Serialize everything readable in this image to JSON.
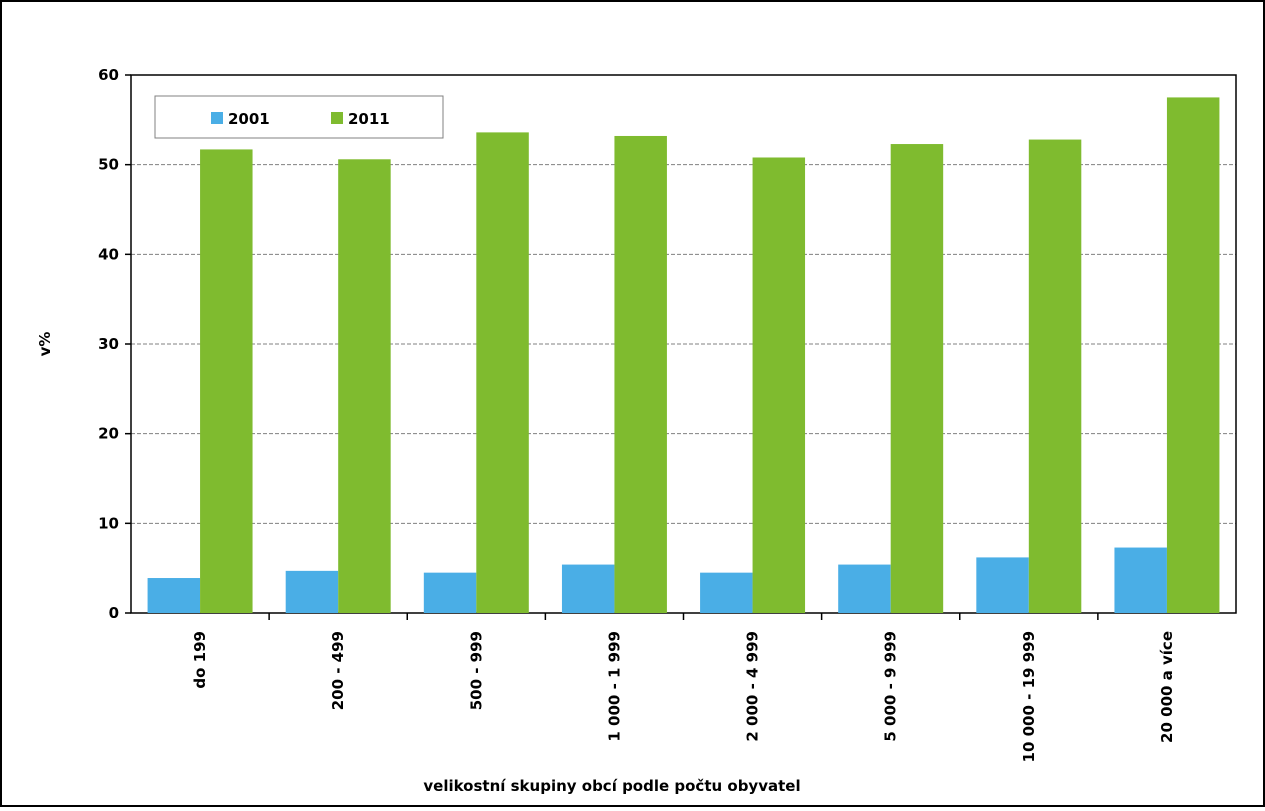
{
  "chart_data": {
    "type": "bar",
    "title": "",
    "xlabel": "velikostní skupiny obcí podle počtu obyvatel",
    "ylabel": "v%",
    "ylim": [
      0,
      60
    ],
    "yticks": [
      0,
      10,
      20,
      30,
      40,
      50,
      60
    ],
    "grid": true,
    "legend_position": "top-left",
    "categories": [
      "do  199",
      "200 - 499",
      "500 - 999",
      "1 000 - 1 999",
      "2 000 - 4 999",
      "5 000 - 9 999",
      "10 000 - 19 999",
      "20 000 a více"
    ],
    "series": [
      {
        "name": "2001",
        "color": "#4aaee6",
        "values": [
          3.9,
          4.7,
          4.5,
          5.4,
          4.5,
          5.4,
          6.2,
          7.3
        ]
      },
      {
        "name": "2011",
        "color": "#7fbb2f",
        "values": [
          51.7,
          50.6,
          53.6,
          53.2,
          50.8,
          52.3,
          52.8,
          57.5
        ]
      }
    ]
  }
}
